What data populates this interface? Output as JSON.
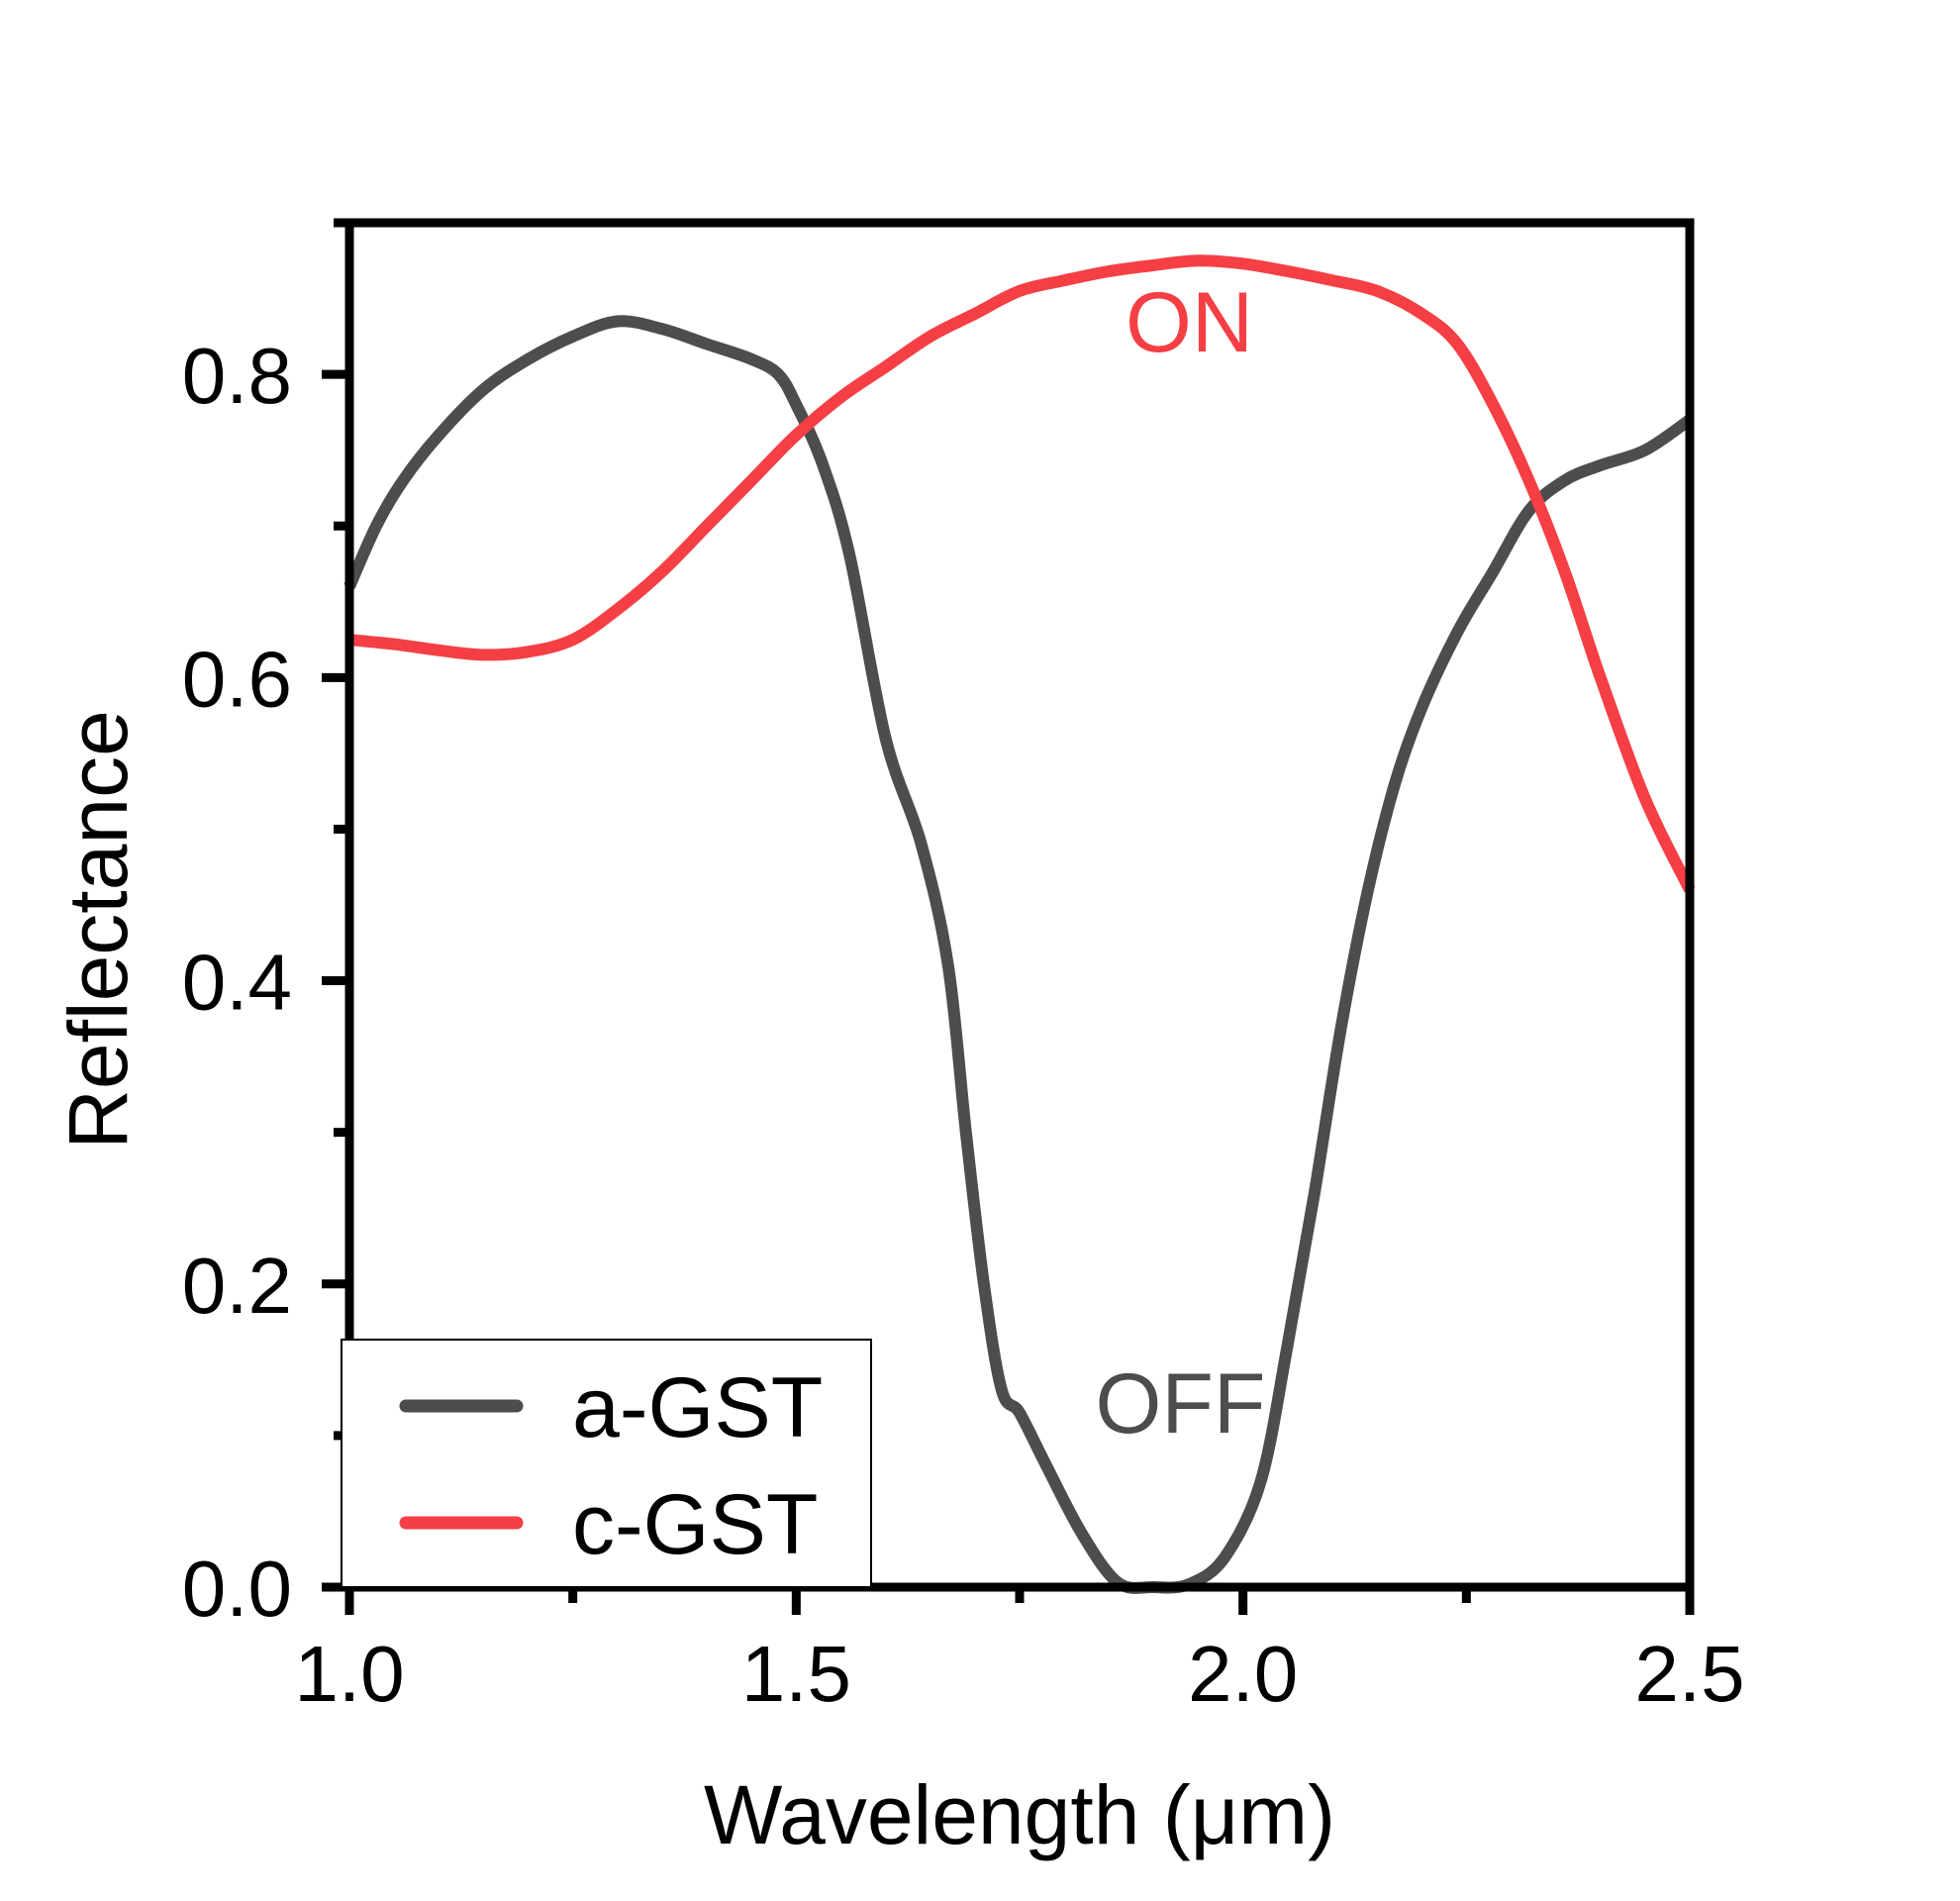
{
  "chart_data": {
    "type": "line",
    "xlabel": "Wavelength (μm)",
    "ylabel": "Reflectance",
    "xlim": [
      1.0,
      2.5
    ],
    "ylim": [
      0.0,
      0.9
    ],
    "xticks": [
      1.0,
      1.5,
      2.0,
      2.5
    ],
    "xtick_labels": [
      "1.0",
      "1.5",
      "2.0",
      "2.5"
    ],
    "yticks": [
      0.0,
      0.2,
      0.4,
      0.6,
      0.8
    ],
    "ytick_labels": [
      "0.0",
      "0.2",
      "0.4",
      "0.6",
      "0.8"
    ],
    "grid": false,
    "legend": "bottom-left",
    "series": [
      {
        "name": "a-GST",
        "color": "#4d4d4d",
        "x": [
          1.0,
          1.03,
          1.06,
          1.1,
          1.15,
          1.2,
          1.25,
          1.3,
          1.35,
          1.4,
          1.45,
          1.48,
          1.5,
          1.53,
          1.56,
          1.6,
          1.64,
          1.67,
          1.69,
          1.71,
          1.73,
          1.75,
          1.78,
          1.82,
          1.86,
          1.9,
          1.94,
          1.98,
          2.02,
          2.05,
          2.08,
          2.11,
          2.14,
          2.17,
          2.2,
          2.24,
          2.28,
          2.32,
          2.36,
          2.4,
          2.45,
          2.5
        ],
        "y": [
          0.66,
          0.7,
          0.73,
          0.76,
          0.79,
          0.81,
          0.825,
          0.835,
          0.83,
          0.82,
          0.81,
          0.8,
          0.78,
          0.74,
          0.68,
          0.56,
          0.49,
          0.41,
          0.3,
          0.2,
          0.13,
          0.115,
          0.08,
          0.035,
          0.003,
          0.0,
          0.002,
          0.02,
          0.07,
          0.16,
          0.26,
          0.37,
          0.46,
          0.53,
          0.58,
          0.63,
          0.67,
          0.71,
          0.73,
          0.74,
          0.75,
          0.77
        ]
      },
      {
        "name": "c-GST",
        "color": "#f53f44",
        "x": [
          1.0,
          1.05,
          1.1,
          1.15,
          1.2,
          1.25,
          1.3,
          1.35,
          1.4,
          1.45,
          1.5,
          1.55,
          1.6,
          1.65,
          1.7,
          1.75,
          1.8,
          1.85,
          1.9,
          1.95,
          2.0,
          2.05,
          2.1,
          2.15,
          2.2,
          2.24,
          2.28,
          2.32,
          2.36,
          2.4,
          2.45,
          2.5
        ],
        "y": [
          0.625,
          0.622,
          0.618,
          0.615,
          0.617,
          0.625,
          0.645,
          0.67,
          0.7,
          0.73,
          0.76,
          0.785,
          0.805,
          0.825,
          0.84,
          0.855,
          0.862,
          0.868,
          0.872,
          0.875,
          0.873,
          0.868,
          0.862,
          0.855,
          0.84,
          0.82,
          0.78,
          0.73,
          0.67,
          0.6,
          0.52,
          0.46
        ]
      }
    ],
    "annotations": [
      {
        "text": "ON",
        "x": 1.94,
        "y": 0.815,
        "color": "#f53f44"
      },
      {
        "text": "OFF",
        "x": 1.93,
        "y": 0.102,
        "color": "#4d4d4d"
      }
    ]
  }
}
